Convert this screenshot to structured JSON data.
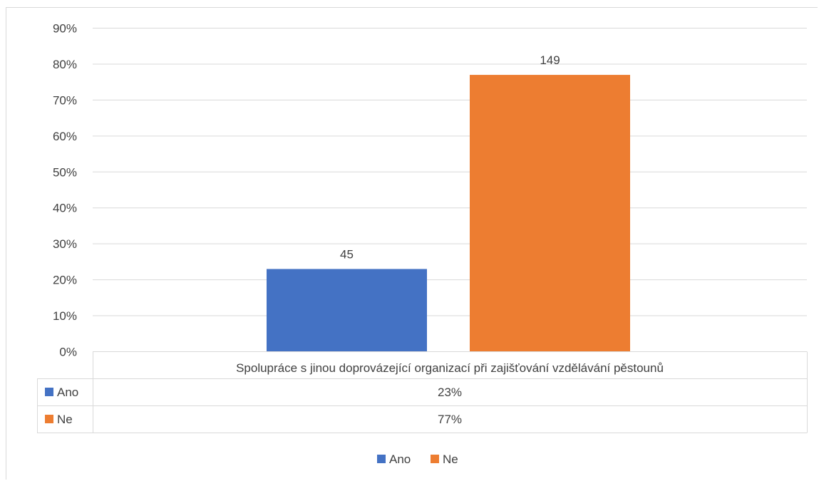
{
  "chart_data": {
    "type": "bar",
    "category": "Spolupráce s jinou doprovázející organizací při zajišťování vzdělávání pěstounů",
    "series": [
      {
        "name": "Ano",
        "value_percent": 23,
        "label": "45",
        "table_value": "23%",
        "color": "#4472c4"
      },
      {
        "name": "Ne",
        "value_percent": 77,
        "label": "149",
        "table_value": "77%",
        "color": "#ed7d31"
      }
    ],
    "yticks": [
      "0%",
      "10%",
      "20%",
      "30%",
      "40%",
      "50%",
      "60%",
      "70%",
      "80%",
      "90%"
    ],
    "ylim": [
      0,
      90
    ],
    "grid": true,
    "legend_position": "bottom",
    "data_table": true
  }
}
